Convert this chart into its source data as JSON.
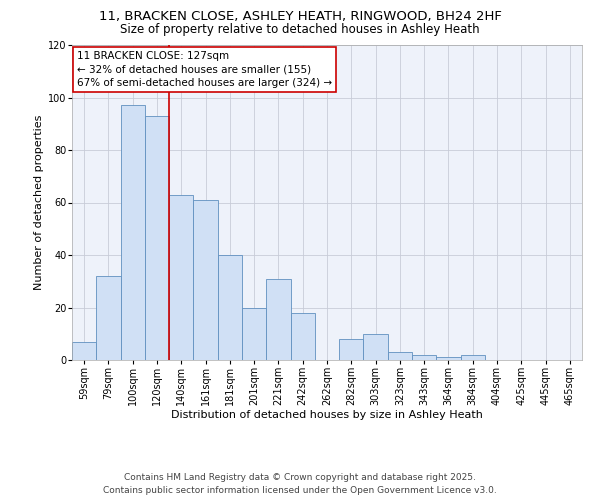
{
  "title_line1": "11, BRACKEN CLOSE, ASHLEY HEATH, RINGWOOD, BH24 2HF",
  "title_line2": "Size of property relative to detached houses in Ashley Heath",
  "xlabel": "Distribution of detached houses by size in Ashley Heath",
  "ylabel": "Number of detached properties",
  "bar_color": "#d0e0f5",
  "bar_edge_color": "#6090c0",
  "background_color": "#eef2fa",
  "grid_color": "#c8ccd8",
  "categories": [
    "59sqm",
    "79sqm",
    "100sqm",
    "120sqm",
    "140sqm",
    "161sqm",
    "181sqm",
    "201sqm",
    "221sqm",
    "242sqm",
    "262sqm",
    "282sqm",
    "303sqm",
    "323sqm",
    "343sqm",
    "364sqm",
    "384sqm",
    "404sqm",
    "425sqm",
    "445sqm",
    "465sqm"
  ],
  "values": [
    7,
    32,
    97,
    93,
    63,
    61,
    40,
    20,
    31,
    18,
    0,
    8,
    10,
    3,
    2,
    1,
    2,
    0,
    0,
    0,
    0
  ],
  "ylim": [
    0,
    120
  ],
  "yticks": [
    0,
    20,
    40,
    60,
    80,
    100,
    120
  ],
  "vline_x": 3.5,
  "vline_color": "#cc0000",
  "annotation_line1": "11 BRACKEN CLOSE: 127sqm",
  "annotation_line2": "← 32% of detached houses are smaller (155)",
  "annotation_line3": "67% of semi-detached houses are larger (324) →",
  "footer_line1": "Contains HM Land Registry data © Crown copyright and database right 2025.",
  "footer_line2": "Contains public sector information licensed under the Open Government Licence v3.0.",
  "title_fontsize": 9.5,
  "subtitle_fontsize": 8.5,
  "tick_fontsize": 7,
  "ylabel_fontsize": 8,
  "xlabel_fontsize": 8,
  "annotation_fontsize": 7.5,
  "footer_fontsize": 6.5
}
